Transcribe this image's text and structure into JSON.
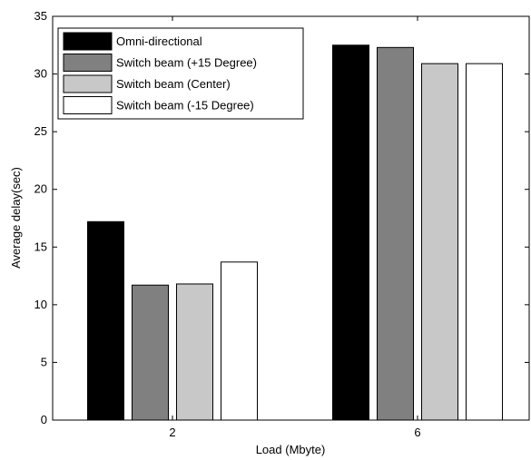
{
  "chart_data": {
    "type": "bar",
    "title": "",
    "xlabel": "Load (Mbyte)",
    "ylabel": "Average delay(sec)",
    "categories": [
      "2",
      "6"
    ],
    "ylim": [
      0,
      35
    ],
    "yticks": [
      "0",
      "5",
      "10",
      "15",
      "20",
      "25",
      "30",
      "35"
    ],
    "grid": false,
    "legend_position": "top-left",
    "series": [
      {
        "name": "Omni-directional",
        "color": "#000000",
        "values": [
          17.2,
          32.5
        ]
      },
      {
        "name": "Switch beam (+15 Degree)",
        "color": "#808080",
        "values": [
          11.7,
          32.3
        ]
      },
      {
        "name": "Switch beam (Center)",
        "color": "#c8c8c8",
        "values": [
          11.8,
          30.9
        ]
      },
      {
        "name": "Switch beam (-15 Degree)",
        "color": "#ffffff",
        "values": [
          13.7,
          30.9
        ]
      }
    ]
  }
}
